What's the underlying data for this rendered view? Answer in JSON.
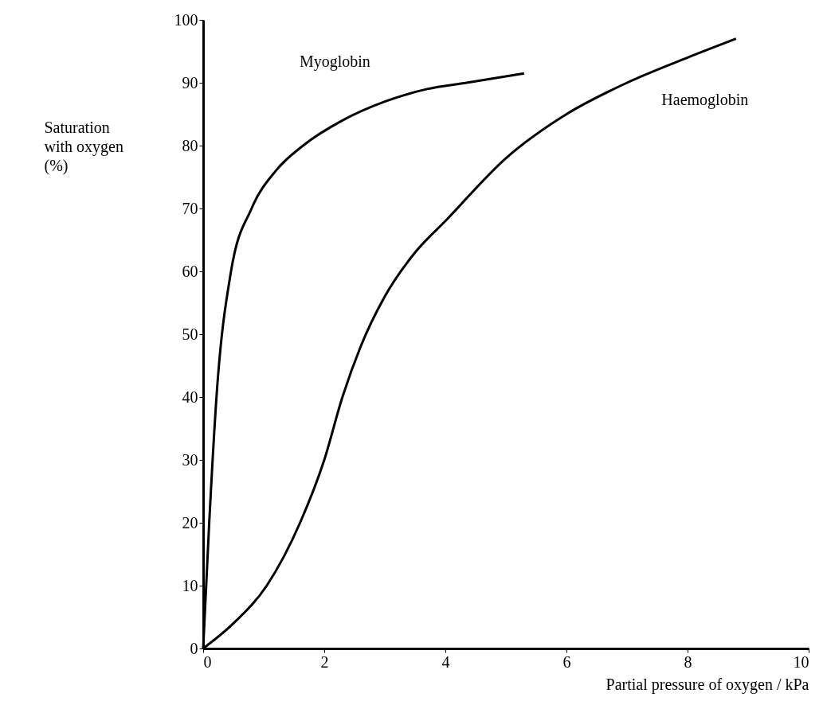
{
  "chart_data": {
    "type": "line",
    "xlabel": "Partial pressure of oxygen / kPa",
    "ylabel": "Saturation with oxygen (%)",
    "xlim": [
      0,
      10
    ],
    "ylim": [
      0,
      100
    ],
    "xticks": [
      0,
      2,
      4,
      6,
      8,
      10
    ],
    "yticks": [
      0,
      10,
      20,
      30,
      40,
      50,
      60,
      70,
      80,
      90,
      100
    ],
    "grid": false,
    "marker": "none",
    "line_style": "solid",
    "series": [
      {
        "name": "Myoglobin",
        "color": "#000000",
        "x": [
          0,
          0.1,
          0.22,
          0.46,
          0.8,
          1.2,
          1.65,
          2.3,
          3.0,
          3.7,
          4.35,
          5.3
        ],
        "values": [
          0,
          20,
          40,
          60,
          70,
          76,
          80,
          84,
          87,
          89,
          90,
          91.5
        ]
      },
      {
        "name": "Haemoglobin",
        "color": "#000000",
        "x": [
          0,
          0.5,
          1.05,
          1.6,
          2.0,
          2.3,
          2.6,
          3.0,
          3.5,
          4.0,
          5.0,
          6.0,
          7.0,
          8.0,
          8.8
        ],
        "values": [
          0,
          4,
          10,
          20,
          30,
          40,
          48,
          56,
          63,
          68,
          78,
          85,
          90,
          94,
          97
        ]
      }
    ]
  }
}
